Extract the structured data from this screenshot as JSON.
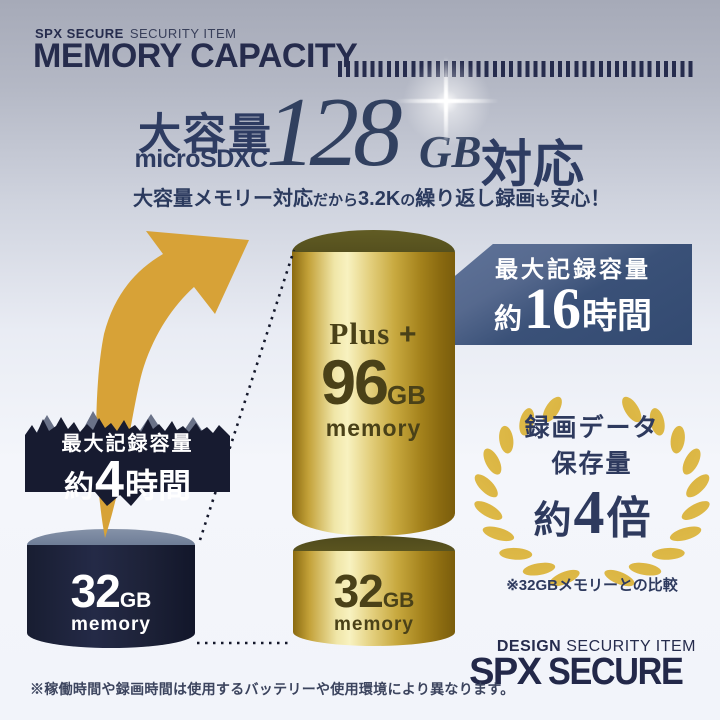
{
  "colors": {
    "navy": "#262c4d",
    "title_navy": "#2e3c62",
    "accent_gold": "#d7a237",
    "badge16_navy": "#3a5178",
    "badge4_dark": "#171b30",
    "gold_text": "#4a4118",
    "background_top": "#a6aab8",
    "background_bottom": "#f2f4fa",
    "white": "#ffffff"
  },
  "header": {
    "brand_bold": "SPX SECURE",
    "brand_light": "SECURITY ITEM",
    "title": "MEMORY CAPACITY"
  },
  "hero": {
    "catch": "大容量",
    "spec": "microSDXC",
    "number": "128",
    "unit": "GB",
    "suffix": "対応",
    "subtitle_segments": [
      {
        "text": "大容量メモリー対応",
        "size": "lg"
      },
      {
        "text": "だから",
        "size": "sm"
      },
      {
        "text": "3.2K",
        "size": "lg"
      },
      {
        "text": "の",
        "size": "sm"
      },
      {
        "text": "繰り返し録画",
        "size": "lg"
      },
      {
        "text": "も",
        "size": "sm"
      },
      {
        "text": "安心！",
        "size": "lg"
      }
    ]
  },
  "badge16": {
    "title": "最大記録容量",
    "approx": "約",
    "value": "16",
    "unit": "時間"
  },
  "badge4": {
    "title": "最大記録容量",
    "approx": "約",
    "value": "4",
    "unit": "時間"
  },
  "gold_cylinder": {
    "plus_label": "Plus",
    "plus_sign": "+",
    "value": "96",
    "unit": "GB",
    "caption": "memory"
  },
  "gold_cylinder_small": {
    "value": "32",
    "unit": "GB",
    "caption": "memory"
  },
  "dark_cylinder": {
    "value": "32",
    "unit": "GB",
    "caption": "memory"
  },
  "wreath": {
    "line1": "録画データ",
    "line2": "保存量",
    "approx": "約",
    "value": "4",
    "unit": "倍",
    "note": "※32GBメモリーとの比較"
  },
  "footer": {
    "brand_bold": "DESIGN",
    "brand_light": "SECURITY ITEM",
    "logo_bold": "SPX",
    "logo_light": "SECURE",
    "disclaimer": "※稼働時間や録画時間は使用するバッテリーや使用環境により異なります。"
  }
}
